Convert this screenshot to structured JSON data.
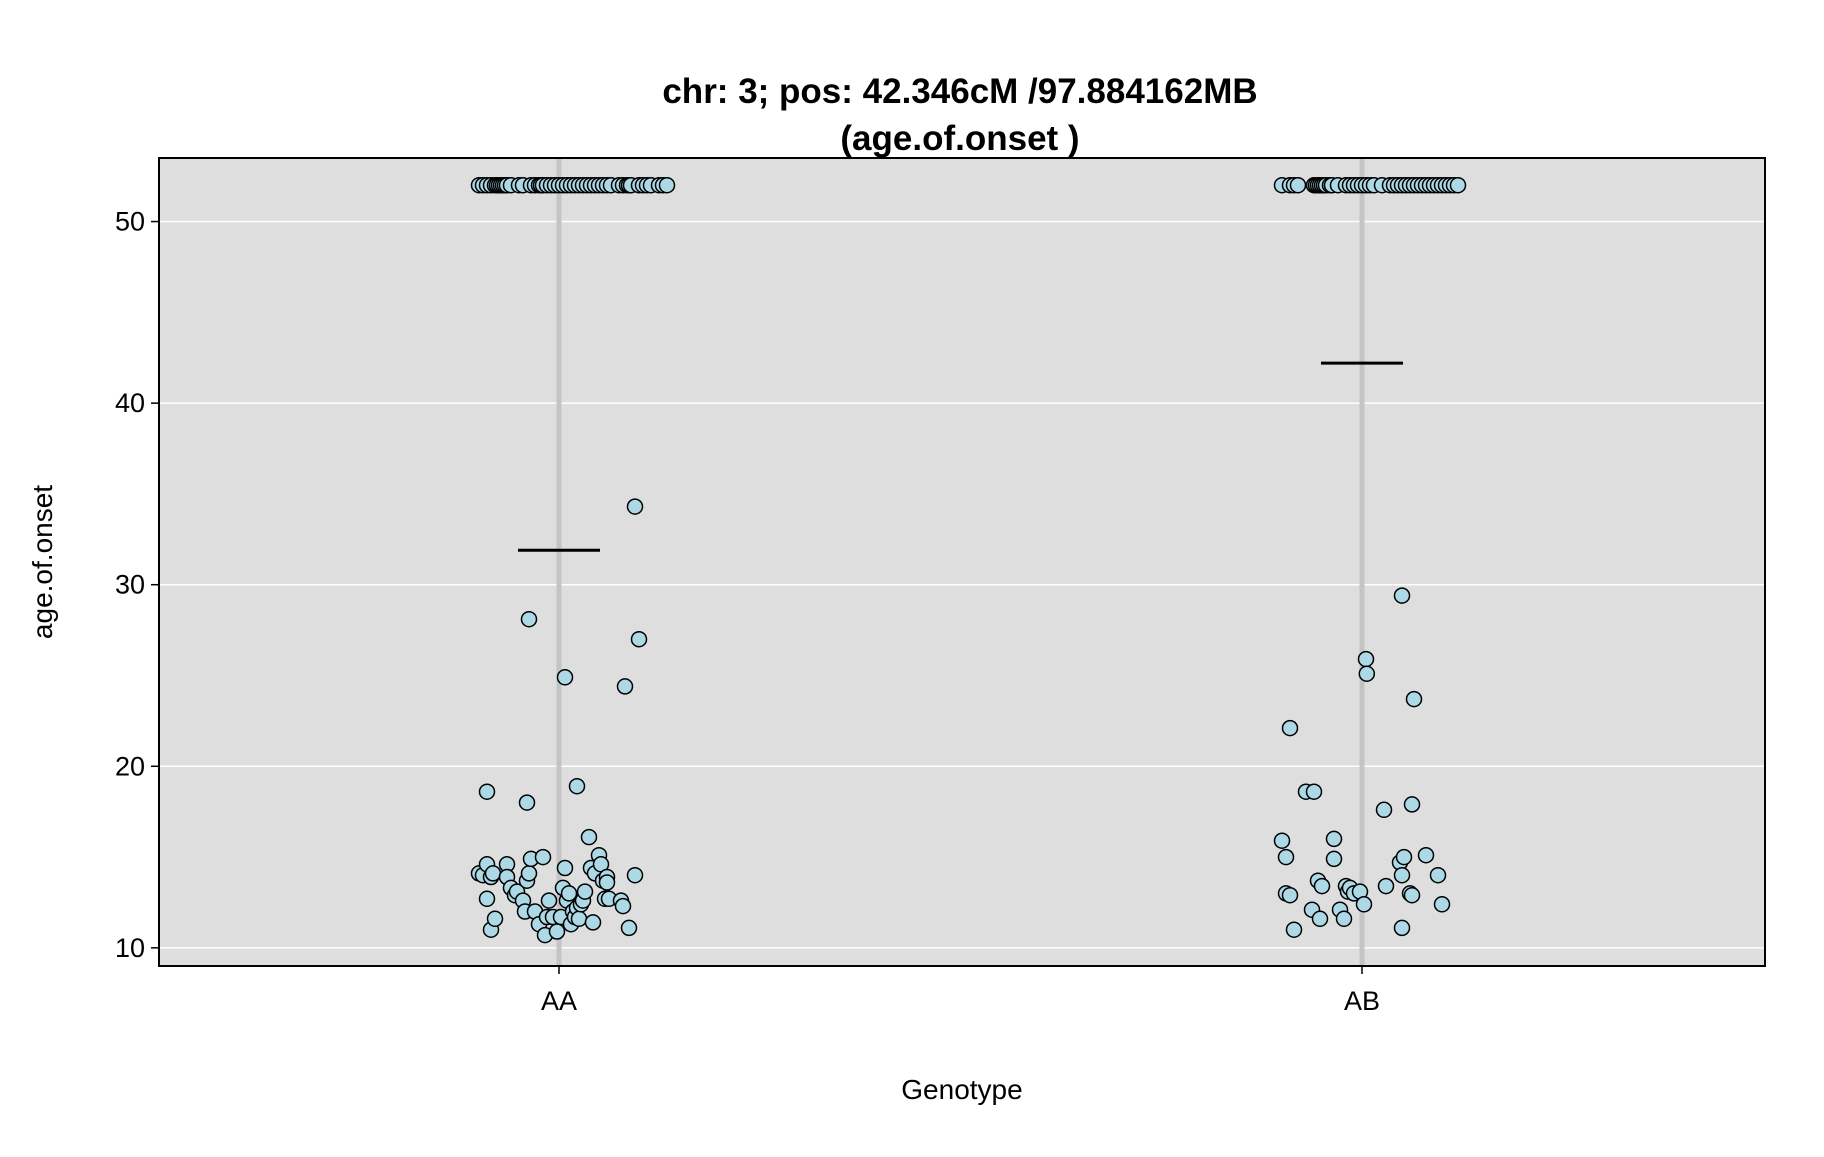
{
  "chart_data": {
    "type": "scatter",
    "title": "chr: 3; pos: 42.346cM /97.884162MB",
    "subtitle": "(age.of.onset )",
    "xlabel": "Genotype",
    "ylabel": "age.of.onset",
    "categories": [
      "AA",
      "AB"
    ],
    "ylim": [
      9,
      53.5
    ],
    "yticks": [
      10,
      20,
      30,
      40,
      50
    ],
    "grid": true,
    "colors": {
      "panel": "#dedede",
      "grid": "#ffffff",
      "category_line": "#c4c4c4",
      "point_fill": "#add8e6",
      "point_stroke": "#000000",
      "mean_line": "#000000"
    },
    "means": [
      31.9,
      42.2
    ],
    "series": [
      {
        "category": "AA",
        "points": [
          [
            -0.2,
            52
          ],
          [
            -0.19,
            52
          ],
          [
            -0.18,
            52
          ],
          [
            -0.17,
            52
          ],
          [
            -0.16,
            52
          ],
          [
            -0.155,
            52
          ],
          [
            -0.15,
            52
          ],
          [
            -0.145,
            52
          ],
          [
            -0.14,
            52
          ],
          [
            -0.135,
            52
          ],
          [
            -0.13,
            52
          ],
          [
            -0.12,
            52
          ],
          [
            -0.1,
            52
          ],
          [
            -0.09,
            52
          ],
          [
            -0.07,
            52
          ],
          [
            -0.06,
            52
          ],
          [
            -0.05,
            52
          ],
          [
            -0.045,
            52
          ],
          [
            -0.04,
            52
          ],
          [
            -0.03,
            52
          ],
          [
            -0.02,
            52
          ],
          [
            -0.01,
            52
          ],
          [
            0.0,
            52
          ],
          [
            0.01,
            52
          ],
          [
            0.02,
            52
          ],
          [
            0.03,
            52
          ],
          [
            0.04,
            52
          ],
          [
            0.05,
            52
          ],
          [
            0.06,
            52
          ],
          [
            0.07,
            52
          ],
          [
            0.08,
            52
          ],
          [
            0.09,
            52
          ],
          [
            0.1,
            52
          ],
          [
            0.11,
            52
          ],
          [
            0.12,
            52
          ],
          [
            0.13,
            52
          ],
          [
            0.15,
            52
          ],
          [
            0.16,
            52
          ],
          [
            0.17,
            52
          ],
          [
            0.175,
            52
          ],
          [
            0.18,
            52
          ],
          [
            0.2,
            52
          ],
          [
            0.21,
            52
          ],
          [
            0.22,
            52
          ],
          [
            0.23,
            52
          ],
          [
            0.25,
            52
          ],
          [
            0.26,
            52
          ],
          [
            0.27,
            52
          ],
          [
            0.19,
            34.3
          ],
          [
            -0.075,
            28.1
          ],
          [
            0.015,
            24.9
          ],
          [
            0.2,
            27
          ],
          [
            0.165,
            24.4
          ],
          [
            0.045,
            18.9
          ],
          [
            -0.18,
            18.6
          ],
          [
            -0.08,
            18
          ],
          [
            -0.2,
            14.1
          ],
          [
            -0.19,
            14
          ],
          [
            -0.18,
            14.6
          ],
          [
            -0.17,
            13.9
          ],
          [
            -0.165,
            14.1
          ],
          [
            -0.13,
            14.6
          ],
          [
            -0.13,
            13.9
          ],
          [
            -0.12,
            13.3
          ],
          [
            -0.11,
            12.9
          ],
          [
            -0.105,
            13.1
          ],
          [
            -0.09,
            12.6
          ],
          [
            -0.085,
            12
          ],
          [
            -0.08,
            13.7
          ],
          [
            -0.075,
            14.1
          ],
          [
            -0.07,
            14.9
          ],
          [
            -0.06,
            12
          ],
          [
            -0.05,
            11.3
          ],
          [
            -0.04,
            15
          ],
          [
            -0.035,
            10.7
          ],
          [
            -0.03,
            11.7
          ],
          [
            -0.025,
            12.6
          ],
          [
            -0.015,
            11.7
          ],
          [
            -0.005,
            10.9
          ],
          [
            0.005,
            11.7
          ],
          [
            0.01,
            13.3
          ],
          [
            0.015,
            14.4
          ],
          [
            0.02,
            12.6
          ],
          [
            0.025,
            13
          ],
          [
            0.03,
            11.3
          ],
          [
            0.035,
            12
          ],
          [
            0.04,
            11.7
          ],
          [
            0.045,
            12.2
          ],
          [
            0.05,
            11.6
          ],
          [
            0.055,
            12.4
          ],
          [
            0.06,
            12.6
          ],
          [
            0.065,
            13.1
          ],
          [
            -0.18,
            12.7
          ],
          [
            -0.17,
            11
          ],
          [
            -0.16,
            11.6
          ],
          [
            0.075,
            16.1
          ],
          [
            0.08,
            14.4
          ],
          [
            0.085,
            11.4
          ],
          [
            0.09,
            14.1
          ],
          [
            0.1,
            15.1
          ],
          [
            0.105,
            14.6
          ],
          [
            0.11,
            13.7
          ],
          [
            0.115,
            12.7
          ],
          [
            0.12,
            13.9
          ],
          [
            0.12,
            13.6
          ],
          [
            0.125,
            12.7
          ],
          [
            0.155,
            12.6
          ],
          [
            0.16,
            12.3
          ],
          [
            0.175,
            11.1
          ],
          [
            0.19,
            14
          ]
        ]
      },
      {
        "category": "AB",
        "points": [
          [
            -0.2,
            52
          ],
          [
            -0.18,
            52
          ],
          [
            -0.17,
            52
          ],
          [
            -0.16,
            52
          ],
          [
            -0.12,
            52
          ],
          [
            -0.115,
            52
          ],
          [
            -0.11,
            52
          ],
          [
            -0.105,
            52
          ],
          [
            -0.1,
            52
          ],
          [
            -0.095,
            52
          ],
          [
            -0.09,
            52
          ],
          [
            -0.08,
            52
          ],
          [
            -0.075,
            52
          ],
          [
            -0.06,
            52
          ],
          [
            -0.04,
            52
          ],
          [
            -0.03,
            52
          ],
          [
            -0.02,
            52
          ],
          [
            -0.01,
            52
          ],
          [
            0.0,
            52
          ],
          [
            0.01,
            52
          ],
          [
            0.02,
            52
          ],
          [
            0.03,
            52
          ],
          [
            0.05,
            52
          ],
          [
            0.07,
            52
          ],
          [
            0.08,
            52
          ],
          [
            0.09,
            52
          ],
          [
            0.1,
            52
          ],
          [
            0.11,
            52
          ],
          [
            0.12,
            52
          ],
          [
            0.13,
            52
          ],
          [
            0.14,
            52
          ],
          [
            0.15,
            52
          ],
          [
            0.16,
            52
          ],
          [
            0.17,
            52
          ],
          [
            0.18,
            52
          ],
          [
            0.19,
            52
          ],
          [
            0.2,
            52
          ],
          [
            0.21,
            52
          ],
          [
            0.22,
            52
          ],
          [
            0.23,
            52
          ],
          [
            0.24,
            52
          ],
          [
            0.1,
            29.4
          ],
          [
            0.01,
            25.9
          ],
          [
            0.012,
            25.1
          ],
          [
            0.13,
            23.7
          ],
          [
            -0.18,
            22.1
          ],
          [
            -0.14,
            18.6
          ],
          [
            -0.12,
            18.6
          ],
          [
            0.055,
            17.6
          ],
          [
            0.125,
            17.9
          ],
          [
            -0.2,
            15.9
          ],
          [
            -0.19,
            15
          ],
          [
            -0.19,
            13
          ],
          [
            -0.18,
            12.9
          ],
          [
            -0.17,
            11
          ],
          [
            -0.125,
            12.1
          ],
          [
            -0.11,
            13.7
          ],
          [
            -0.105,
            11.6
          ],
          [
            -0.1,
            13.4
          ],
          [
            -0.07,
            16
          ],
          [
            -0.07,
            14.9
          ],
          [
            -0.055,
            12.1
          ],
          [
            -0.045,
            11.6
          ],
          [
            -0.04,
            13.4
          ],
          [
            -0.035,
            13.1
          ],
          [
            -0.03,
            13.3
          ],
          [
            -0.02,
            13
          ],
          [
            -0.005,
            13.1
          ],
          [
            0.005,
            12.4
          ],
          [
            0.06,
            13.4
          ],
          [
            0.095,
            14.7
          ],
          [
            0.1,
            14
          ],
          [
            0.105,
            15
          ],
          [
            0.1,
            11.1
          ],
          [
            0.12,
            13
          ],
          [
            0.125,
            12.9
          ],
          [
            0.16,
            15.1
          ],
          [
            0.19,
            14
          ],
          [
            0.2,
            12.4
          ]
        ]
      }
    ]
  }
}
